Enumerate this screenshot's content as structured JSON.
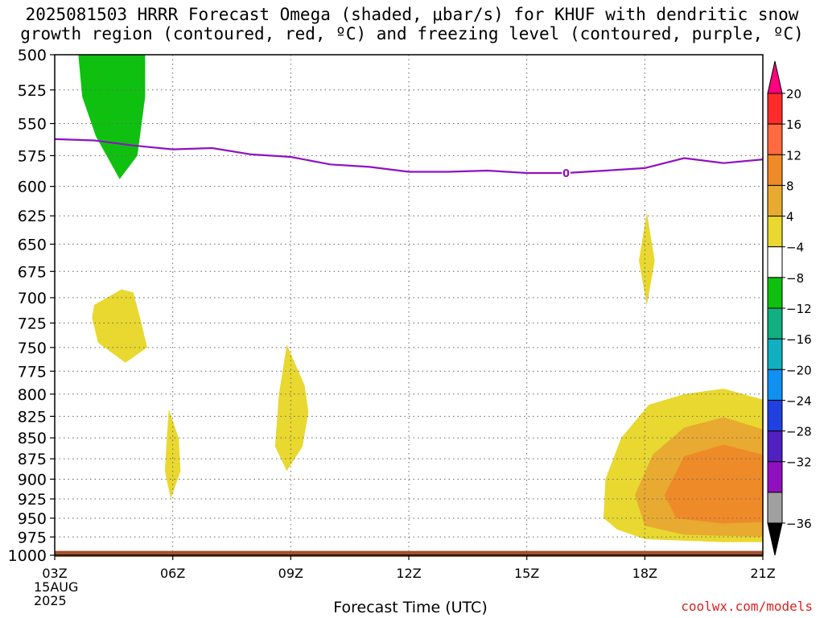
{
  "chart_data": {
    "type": "contour",
    "title_line1": "2025081503 HRRR Forecast Omega (shaded, μbar/s) for KHUF with dendritic snow",
    "title_line2": "growth region (contoured, red, ºC) and freezing level (contoured, purple, ºC)",
    "xlabel": "Forecast Time (UTC)",
    "x_ticks": [
      {
        "hour": 3,
        "label": "03Z"
      },
      {
        "hour": 6,
        "label": "06Z"
      },
      {
        "hour": 9,
        "label": "09Z"
      },
      {
        "hour": 12,
        "label": "12Z"
      },
      {
        "hour": 15,
        "label": "15Z"
      },
      {
        "hour": 18,
        "label": "18Z"
      },
      {
        "hour": 21,
        "label": "21Z"
      }
    ],
    "x_range": [
      3,
      21
    ],
    "date_label": [
      "15AUG",
      "2025"
    ],
    "y_ticks": [
      500,
      525,
      550,
      575,
      600,
      625,
      650,
      675,
      700,
      725,
      750,
      775,
      800,
      825,
      850,
      875,
      900,
      925,
      950,
      975,
      1000
    ],
    "y_range": [
      500,
      1000
    ],
    "y_scale": "log-pressure",
    "grid": true,
    "colorbar": {
      "labels": [
        "20",
        "16",
        "12",
        "8",
        "4",
        "−4",
        "−8",
        "−12",
        "−16",
        "−20",
        "−24",
        "−28",
        "−32",
        "−36"
      ],
      "colors": [
        "#ff0080",
        "#ff2a2a",
        "#ff6a40",
        "#ee8a28",
        "#e8aa30",
        "#e8d830",
        "#ffffff",
        "#10c010",
        "#10b080",
        "#10b0c0",
        "#1090f0",
        "#2040e0",
        "#5020c0",
        "#9010c0",
        "#a0a0a0",
        "#000000"
      ]
    },
    "freezing_level": {
      "label": "0",
      "color": "#9010c0",
      "points": [
        [
          3,
          562
        ],
        [
          4,
          563
        ],
        [
          5,
          567
        ],
        [
          6,
          570
        ],
        [
          7,
          569
        ],
        [
          8,
          574
        ],
        [
          9,
          576
        ],
        [
          10,
          582
        ],
        [
          11,
          584
        ],
        [
          12,
          588
        ],
        [
          13,
          588
        ],
        [
          14,
          587
        ],
        [
          15,
          589
        ],
        [
          16,
          589
        ],
        [
          17,
          587
        ],
        [
          18,
          585
        ],
        [
          19,
          577
        ],
        [
          20,
          581
        ],
        [
          21,
          578
        ]
      ]
    },
    "shaded_regions": [
      {
        "value_class": "-4 to -8",
        "color": "#10c010",
        "points": [
          [
            4.1,
            500
          ],
          [
            5.3,
            500
          ],
          [
            5.3,
            530
          ],
          [
            5.1,
            575
          ],
          [
            4.65,
            594
          ],
          [
            4.05,
            560
          ],
          [
            3.7,
            530
          ],
          [
            3.6,
            500
          ]
        ]
      },
      {
        "value_class": "4 to 8",
        "color": "#e8d830",
        "points": [
          [
            4.0,
            707
          ],
          [
            4.7,
            692
          ],
          [
            5.0,
            695
          ],
          [
            5.2,
            725
          ],
          [
            5.35,
            750
          ],
          [
            4.8,
            766
          ],
          [
            4.1,
            745
          ],
          [
            3.95,
            720
          ]
        ]
      },
      {
        "value_class": "4 to 8",
        "color": "#e8d830",
        "points": [
          [
            5.9,
            817
          ],
          [
            6.15,
            850
          ],
          [
            6.2,
            890
          ],
          [
            5.95,
            925
          ],
          [
            5.8,
            890
          ],
          [
            5.85,
            850
          ]
        ]
      },
      {
        "value_class": "4 to 8",
        "color": "#e8d830",
        "points": [
          [
            8.9,
            747
          ],
          [
            9.35,
            790
          ],
          [
            9.45,
            820
          ],
          [
            9.3,
            860
          ],
          [
            8.9,
            890
          ],
          [
            8.6,
            860
          ],
          [
            8.7,
            800
          ]
        ]
      },
      {
        "value_class": "4 to 8",
        "color": "#e8d830",
        "points": [
          [
            18.05,
            622
          ],
          [
            18.25,
            665
          ],
          [
            18.05,
            708
          ],
          [
            17.85,
            665
          ]
        ]
      },
      {
        "value_class": "4 to 8",
        "color": "#e8d830",
        "points": [
          [
            21,
            806
          ],
          [
            20.0,
            794
          ],
          [
            19.0,
            800
          ],
          [
            18.1,
            812
          ],
          [
            17.4,
            850
          ],
          [
            17.0,
            900
          ],
          [
            16.95,
            950
          ],
          [
            17.3,
            965
          ],
          [
            18.0,
            978
          ],
          [
            19.0,
            980
          ],
          [
            20.0,
            982
          ],
          [
            21,
            982
          ]
        ]
      },
      {
        "value_class": "8 to 12",
        "color": "#e8aa30",
        "points": [
          [
            21,
            840
          ],
          [
            20.0,
            826
          ],
          [
            19.0,
            838
          ],
          [
            18.2,
            870
          ],
          [
            17.75,
            920
          ],
          [
            18.0,
            960
          ],
          [
            19.0,
            972
          ],
          [
            21,
            975
          ]
        ]
      },
      {
        "value_class": "12 to 16",
        "color": "#ee8a28",
        "points": [
          [
            21,
            870
          ],
          [
            20.0,
            858
          ],
          [
            19.0,
            872
          ],
          [
            18.5,
            920
          ],
          [
            18.8,
            950
          ],
          [
            20.0,
            957
          ],
          [
            21,
            955
          ]
        ]
      }
    ],
    "surface_terrain": {
      "color": "#a0522d",
      "top_pressure": 994
    }
  },
  "credit": "coolwx.com/models"
}
